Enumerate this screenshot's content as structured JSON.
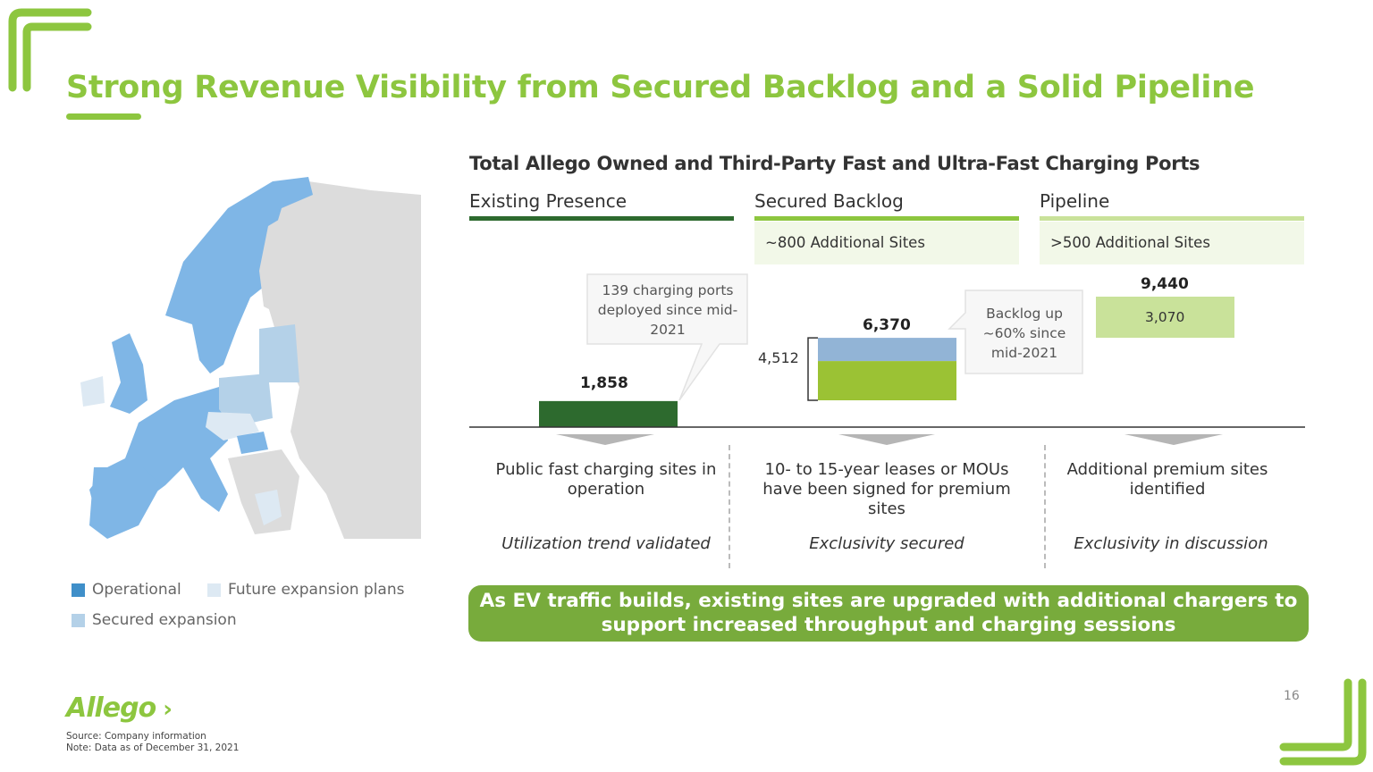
{
  "slide": {
    "title": "Strong Revenue Visibility from Secured Backlog and a Solid Pipeline",
    "page_number": "16",
    "logo_text": "Allego",
    "source": "Source: Company information",
    "note": "Note: Data as of December 31, 2021",
    "banner": "As EV traffic builds, existing sites are upgraded with additional chargers to support increased throughput and charging sessions",
    "accent_color": "#8dc63f"
  },
  "legend": {
    "operational": "Operational",
    "future": "Future expansion plans",
    "secured": "Secured expansion",
    "colors": {
      "operational": "#3f8fc9",
      "secured": "#b4d1e8",
      "future": "#dde9f3"
    }
  },
  "columns": [
    {
      "heading": "Existing Presence",
      "subheading": "",
      "description": "Public fast charging sites in operation",
      "italic": "Utilization trend validated",
      "color": "#2d6a2e"
    },
    {
      "heading": "Secured Backlog",
      "subheading": "~800 Additional Sites",
      "description": "10- to 15-year leases or MOUs have been signed for premium sites",
      "italic": "Exclusivity secured",
      "color": "#8dc63f"
    },
    {
      "heading": "Pipeline",
      "subheading": ">500 Additional Sites",
      "description": "Additional premium sites identified",
      "italic": "Exclusivity in discussion",
      "color": "#c9e29a"
    }
  ],
  "callouts": {
    "existing": "139 charging ports deployed since mid-2021",
    "backlog": "Backlog up ~60% since mid-2021"
  },
  "chart_data": {
    "type": "bar",
    "title": "Total Allego Owned and Third-Party Fast and Ultra-Fast Charging Ports",
    "categories": [
      "Existing Presence",
      "Secured Backlog",
      "Pipeline"
    ],
    "series": [
      {
        "name": "",
        "values": [
          1858,
          4512,
          6370
        ],
        "labels": [
          "1,858",
          "4,512",
          "6,370"
        ]
      },
      {
        "name": "",
        "values": [
          null,
          1858,
          3070
        ],
        "labels": [
          "",
          "",
          "3,070"
        ]
      }
    ],
    "totals": [
      1858,
      6370,
      9440
    ],
    "total_labels": [
      "1,858",
      "6,370",
      "9,440"
    ],
    "ylim": [
      0,
      9440
    ],
    "colors": {
      "existing": "#2d6a2e",
      "backlog_new": "#9bc234",
      "backlog_existing": "#92b4d6",
      "pipeline": "#c9e29a"
    }
  }
}
